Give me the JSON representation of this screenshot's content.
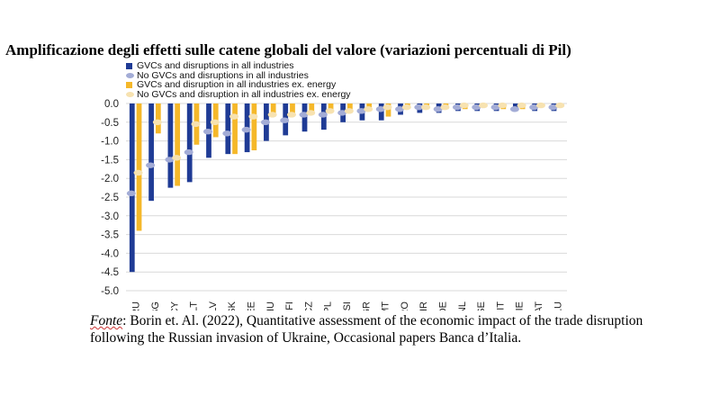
{
  "title": "Amplificazione  degli effetti sulle catene globali del valore (variazioni  percentuali di Pil)",
  "source": {
    "label": "Fonte",
    "line1": ": Borin et. Al. (2022), Quantitative assessment  of the economic impact of the trade disruption",
    "line2": "following the Russian invasion of Ukraine, Occasional papers Banca d’Italia."
  },
  "colors": {
    "series1": "#1f3b95",
    "series2": "#a3acd6",
    "series3": "#f5b82a",
    "series4": "#f7e2b0"
  },
  "chart_data": {
    "type": "bar",
    "title": "Amplificazione  degli effetti sulle catene globali del valore (variazioni  percentuali di Pil)",
    "categories": [
      "RU",
      "BG",
      "CY",
      "LT",
      "LV",
      "SK",
      "EE",
      "HU",
      "FI",
      "CZ",
      "PL",
      "SI",
      "GR",
      "MT",
      "RO",
      "HR",
      "DE",
      "NL",
      "SE",
      "IT",
      "IE",
      "AT",
      "LU"
    ],
    "series": [
      {
        "name": "GVCs and disruptions in all industries",
        "style": "bar",
        "values": [
          -4.5,
          -2.6,
          -2.25,
          -2.1,
          -1.45,
          -1.35,
          -1.3,
          -1.0,
          -0.85,
          -0.75,
          -0.7,
          -0.5,
          -0.45,
          -0.45,
          -0.3,
          -0.25,
          -0.25,
          -0.2,
          -0.2,
          -0.2,
          -0.2,
          -0.2,
          -0.2
        ]
      },
      {
        "name": "No GVCs and disruptions in all industries",
        "style": "dot",
        "values": [
          -2.4,
          -1.65,
          -1.5,
          -1.3,
          -0.75,
          -0.8,
          -0.7,
          -0.5,
          -0.45,
          -0.3,
          -0.3,
          -0.25,
          -0.2,
          -0.15,
          -0.15,
          -0.1,
          -0.15,
          -0.1,
          -0.1,
          -0.1,
          -0.15,
          -0.1,
          -0.1
        ]
      },
      {
        "name": "GVCs and disruption in all industries ex. energy",
        "style": "bar",
        "values": [
          -3.4,
          -0.8,
          -2.2,
          -1.1,
          -0.9,
          -1.35,
          -1.25,
          -0.35,
          -0.3,
          -0.3,
          -0.25,
          -0.25,
          -0.2,
          -0.35,
          -0.1,
          -0.15,
          -0.15,
          -0.15,
          -0.1,
          -0.15,
          -0.15,
          -0.1,
          -0.1
        ]
      },
      {
        "name": "No GVCs and disruption in all industries ex. energy",
        "style": "dot",
        "values": [
          -1.85,
          -0.5,
          -1.45,
          -0.55,
          -0.5,
          -0.35,
          -0.35,
          -0.3,
          -0.3,
          -0.25,
          -0.2,
          -0.2,
          -0.15,
          -0.1,
          -0.1,
          -0.1,
          -0.1,
          -0.05,
          -0.05,
          -0.05,
          -0.05,
          -0.05,
          -0.05
        ]
      }
    ],
    "yticks": [
      "0.0",
      "-0.5",
      "-1.0",
      "-1.5",
      "-2.0",
      "-2.5",
      "-3.0",
      "-3.5",
      "-4.0",
      "-4.5",
      "-5.0"
    ],
    "ylim": [
      -5.0,
      0.0
    ],
    "grid": true,
    "legend_position": "top-left"
  }
}
